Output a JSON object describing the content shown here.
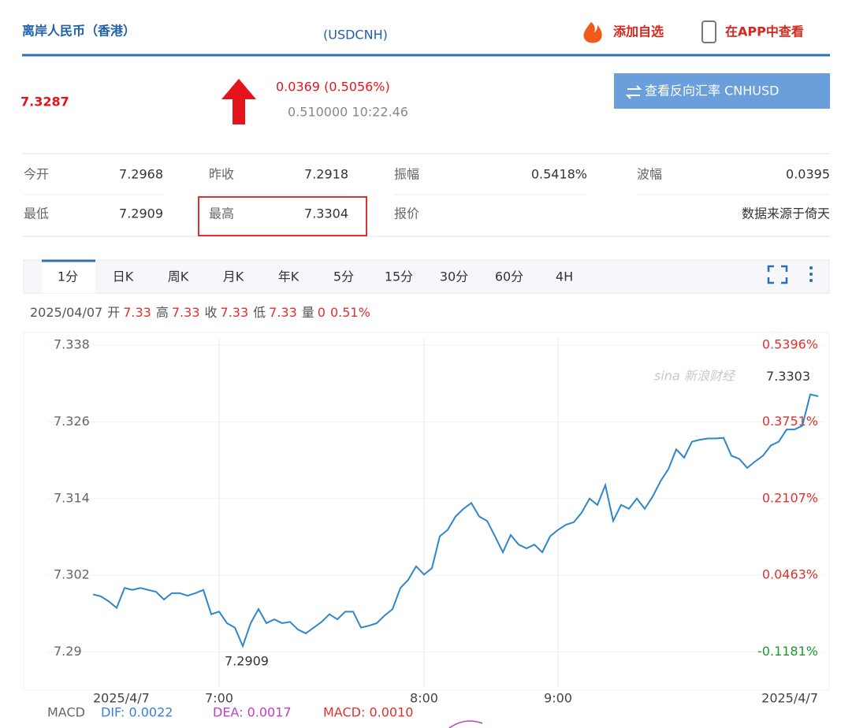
{
  "header": {
    "title": "离岸人民币（香港）",
    "code": "(USDCNH)",
    "add_watchlist": "添加自选",
    "view_in_app": "在APP中查看"
  },
  "quote": {
    "price": "7.3287",
    "change": "0.0369 (0.5056%)",
    "sub": "0.510000 10:22.46",
    "reverse_button": "查看反向汇率 CNHUSD"
  },
  "stats": {
    "rows": [
      [
        {
          "label": "今开",
          "value": "7.2968"
        },
        {
          "label": "昨收",
          "value": "7.2918"
        },
        {
          "label": "振幅",
          "value": "0.5418%"
        },
        {
          "label": "波幅",
          "value": "0.0395"
        }
      ],
      [
        {
          "label": "最低",
          "value": "7.2909"
        },
        {
          "label": "最高",
          "value": "7.3304"
        },
        {
          "label": "报价"
        }
      ]
    ],
    "source": "数据来源于倚天"
  },
  "tabs": [
    "1分",
    "日K",
    "周K",
    "月K",
    "年K",
    "5分",
    "15分",
    "30分",
    "60分",
    "4H"
  ],
  "info_line": {
    "date": "2025/04/07",
    "items": [
      {
        "label": "开",
        "value": "7.33"
      },
      {
        "label": "高",
        "value": "7.33"
      },
      {
        "label": "收",
        "value": "7.33"
      },
      {
        "label": "低",
        "value": "7.33"
      },
      {
        "label": "量",
        "value": "0"
      }
    ],
    "change": "0.51%"
  },
  "chart_data": {
    "type": "line",
    "color": "#2f86c8",
    "watermark": "sina 新浪财经",
    "categories": [
      "2025/4/7",
      null,
      null,
      null,
      null,
      null,
      null,
      null,
      null,
      null,
      null,
      null,
      null,
      null,
      null,
      null,
      "7:00",
      null,
      null,
      null,
      null,
      null,
      null,
      null,
      null,
      null,
      null,
      null,
      null,
      null,
      null,
      null,
      null,
      null,
      null,
      null,
      null,
      null,
      null,
      null,
      null,
      null,
      "8:00",
      null,
      null,
      null,
      null,
      null,
      null,
      null,
      null,
      null,
      null,
      null,
      null,
      null,
      null,
      null,
      null,
      "9:00",
      null,
      null,
      null,
      null,
      null,
      null,
      null,
      null,
      null,
      null,
      null,
      null,
      null,
      null,
      null,
      null,
      null,
      null,
      null,
      null,
      null,
      null,
      null,
      null,
      null,
      null,
      null,
      null,
      null,
      null,
      null,
      null,
      "2025/4/7"
    ],
    "values": [
      7.299,
      7.2987,
      7.2979,
      7.2969,
      7.3,
      7.2997,
      7.3,
      7.2997,
      7.2994,
      7.2982,
      7.2992,
      7.2992,
      7.2988,
      7.2992,
      7.2997,
      7.2959,
      7.2963,
      7.2945,
      7.2938,
      7.2909,
      7.2945,
      7.2967,
      7.2945,
      7.2951,
      7.2945,
      7.2947,
      7.2935,
      7.2929,
      7.2938,
      7.2947,
      7.2959,
      7.2951,
      7.2963,
      7.2963,
      7.2938,
      7.2941,
      7.2945,
      7.2957,
      7.2967,
      7.3,
      7.3013,
      7.3034,
      7.3021,
      7.3031,
      7.3081,
      7.3091,
      7.3112,
      7.3124,
      7.3133,
      7.3112,
      7.3105,
      7.3081,
      7.3056,
      7.3083,
      7.3068,
      7.3062,
      7.3068,
      7.3056,
      7.3081,
      7.3091,
      7.3099,
      7.3103,
      7.3118,
      7.314,
      7.313,
      7.3161,
      7.3105,
      7.313,
      7.3124,
      7.314,
      7.3124,
      7.3143,
      7.3167,
      7.3186,
      7.3217,
      7.3204,
      7.3229,
      7.3232,
      7.3234,
      7.3234,
      7.3235,
      7.3207,
      7.3202,
      7.3188,
      7.3198,
      7.3207,
      7.3223,
      7.3229,
      7.3248,
      7.3248,
      7.3254,
      7.3303,
      7.33
    ],
    "ylim": [
      7.285,
      7.339
    ],
    "yticks": [
      7.29,
      7.302,
      7.314,
      7.326,
      7.338
    ],
    "y2lim": [
      -0.1866,
      0.5533
    ],
    "y2ticks": [
      {
        "value": -0.1181,
        "label": "-0.1181%"
      },
      {
        "value": 0.0463,
        "label": "0.0463%"
      },
      {
        "value": 0.2107,
        "label": "0.2107%"
      },
      {
        "value": 0.3751,
        "label": "0.3751%"
      },
      {
        "value": 0.5396,
        "label": "0.5396%"
      }
    ],
    "grid": true
  },
  "macd": {
    "title": "MACD",
    "dif": "DIF: 0.0022",
    "dea": "DEA: 0.0017",
    "macd": "MACD: 0.0010"
  }
}
